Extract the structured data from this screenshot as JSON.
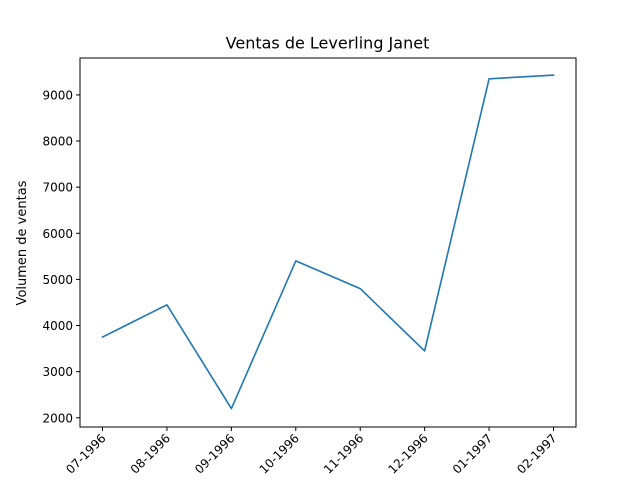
{
  "chart_data": {
    "type": "line",
    "title": "Ventas de Leverling Janet",
    "xlabel": "",
    "ylabel": "Volumen de ventas",
    "categories": [
      "07-1996",
      "08-1996",
      "09-1996",
      "10-1996",
      "11-1996",
      "12-1996",
      "01-1997",
      "02-1997"
    ],
    "series": [
      {
        "values": [
          3750,
          4450,
          2200,
          5400,
          4800,
          3450,
          9350,
          9430
        ],
        "color": "#1f77b4"
      }
    ],
    "ylim": [
      1800,
      9800
    ],
    "yticks": [
      2000,
      3000,
      4000,
      5000,
      6000,
      7000,
      8000,
      9000
    ],
    "grid": false,
    "legend": "none"
  }
}
